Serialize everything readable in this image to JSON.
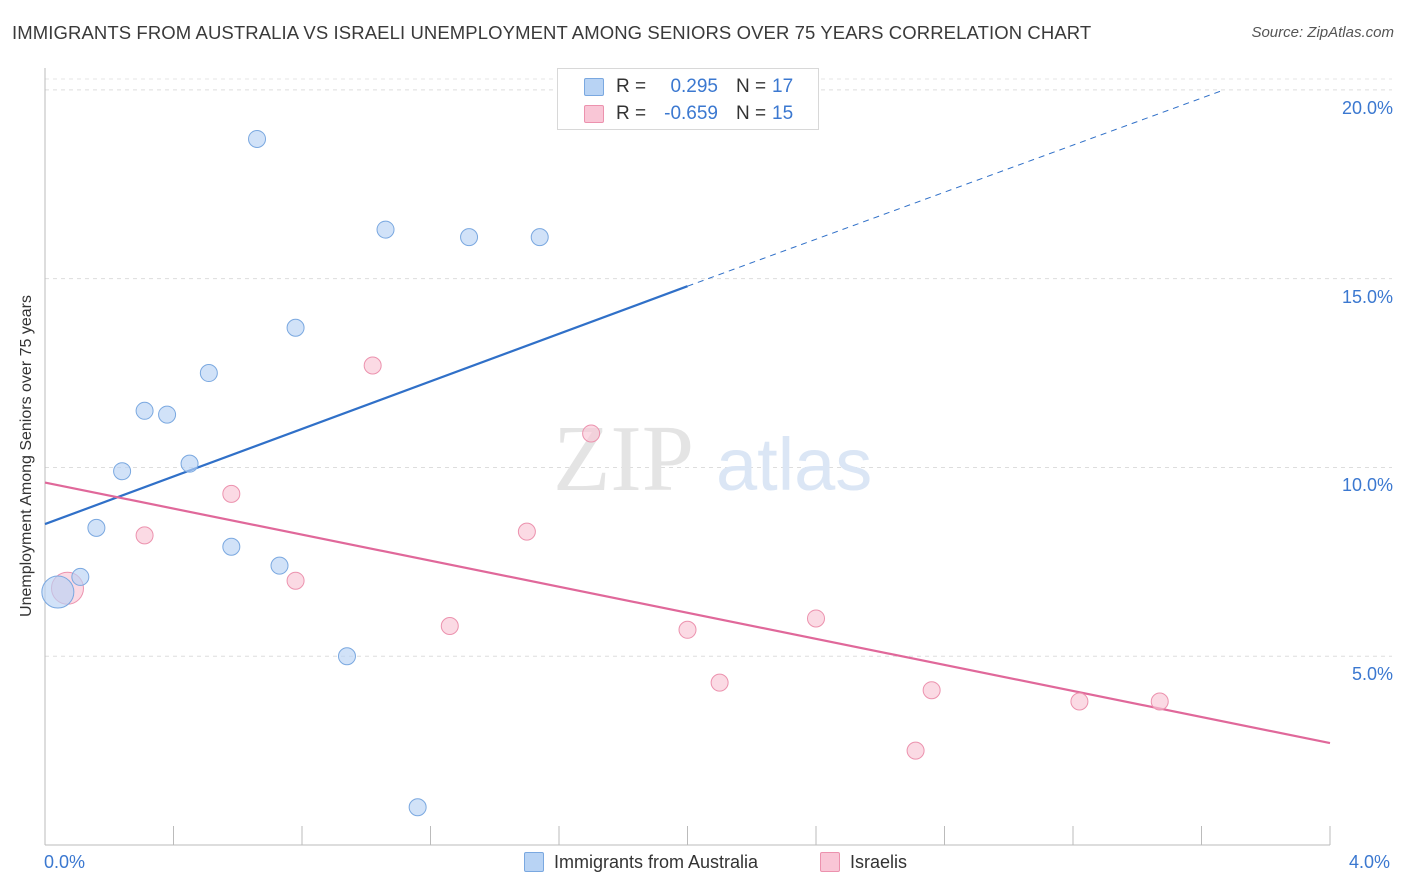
{
  "header": {
    "title": "IMMIGRANTS FROM AUSTRALIA VS ISRAELI UNEMPLOYMENT AMONG SENIORS OVER 75 YEARS CORRELATION CHART",
    "source": "Source: ZipAtlas.com"
  },
  "watermark": {
    "zip": "ZIP",
    "atlas": "atlas"
  },
  "legend": {
    "rows": [
      {
        "r_label": "R =",
        "r_value": "0.295",
        "n_label": "N =",
        "n_value": "17"
      },
      {
        "r_label": "R =",
        "r_value": "-0.659",
        "n_label": "N =",
        "n_value": "15"
      }
    ]
  },
  "bottom_legend": {
    "series_a": "Immigrants from Australia",
    "series_b": "Israelis"
  },
  "colors": {
    "blue_fill": "#b8d3f4",
    "blue_stroke": "#7aa8e0",
    "blue_line": "#3070c8",
    "pink_fill": "#f9c6d6",
    "pink_stroke": "#ec92ae",
    "pink_line": "#e0689a",
    "accent_text": "#3b78d0"
  },
  "chart_data": {
    "type": "scatter",
    "title": "IMMIGRANTS FROM AUSTRALIA VS ISRAELI UNEMPLOYMENT AMONG SENIORS OVER 75 YEARS CORRELATION CHART",
    "xlabel": "",
    "ylabel": "Unemployment Among Seniors over 75 years",
    "xlim": [
      0,
      4
    ],
    "ylim": [
      0,
      20.5
    ],
    "x_tick_labels": [
      "0.0%",
      "4.0%"
    ],
    "y_ticks": [
      5,
      10,
      15,
      20
    ],
    "y_tick_labels": [
      "5.0%",
      "10.0%",
      "15.0%",
      "20.0%"
    ],
    "grid": true,
    "series": [
      {
        "name": "Immigrants from Australia",
        "color": "blue",
        "r": 0.295,
        "n": 17,
        "points": [
          {
            "x": 0.04,
            "y": 6.7,
            "size": "large"
          },
          {
            "x": 0.11,
            "y": 7.1
          },
          {
            "x": 0.16,
            "y": 8.4
          },
          {
            "x": 0.24,
            "y": 9.9
          },
          {
            "x": 0.31,
            "y": 11.5
          },
          {
            "x": 0.38,
            "y": 11.4
          },
          {
            "x": 0.45,
            "y": 10.1
          },
          {
            "x": 0.51,
            "y": 12.5
          },
          {
            "x": 0.58,
            "y": 7.9
          },
          {
            "x": 0.66,
            "y": 18.7
          },
          {
            "x": 0.73,
            "y": 7.4
          },
          {
            "x": 0.78,
            "y": 13.7
          },
          {
            "x": 0.94,
            "y": 5.0
          },
          {
            "x": 1.06,
            "y": 16.3
          },
          {
            "x": 1.16,
            "y": 1.0
          },
          {
            "x": 1.32,
            "y": 16.1
          },
          {
            "x": 1.54,
            "y": 16.1
          }
        ],
        "trend": {
          "x0": 0.0,
          "y0": 8.5,
          "x1": 2.0,
          "y1": 14.8,
          "dashed_to_x": 3.67,
          "dashed_to_y": 20.0
        }
      },
      {
        "name": "Israelis",
        "color": "pink",
        "r": -0.659,
        "n": 15,
        "points": [
          {
            "x": 0.07,
            "y": 6.8,
            "size": "large"
          },
          {
            "x": 0.31,
            "y": 8.2
          },
          {
            "x": 0.58,
            "y": 9.3
          },
          {
            "x": 0.78,
            "y": 7.0
          },
          {
            "x": 1.02,
            "y": 12.7
          },
          {
            "x": 1.26,
            "y": 5.8
          },
          {
            "x": 1.5,
            "y": 8.3
          },
          {
            "x": 1.7,
            "y": 10.9
          },
          {
            "x": 2.0,
            "y": 5.7
          },
          {
            "x": 2.1,
            "y": 4.3
          },
          {
            "x": 2.4,
            "y": 6.0
          },
          {
            "x": 2.71,
            "y": 2.5
          },
          {
            "x": 2.76,
            "y": 4.1
          },
          {
            "x": 3.22,
            "y": 3.8
          },
          {
            "x": 3.47,
            "y": 3.8
          }
        ],
        "trend": {
          "x0": 0.0,
          "y0": 9.6,
          "x1": 4.0,
          "y1": 2.7
        }
      }
    ]
  }
}
